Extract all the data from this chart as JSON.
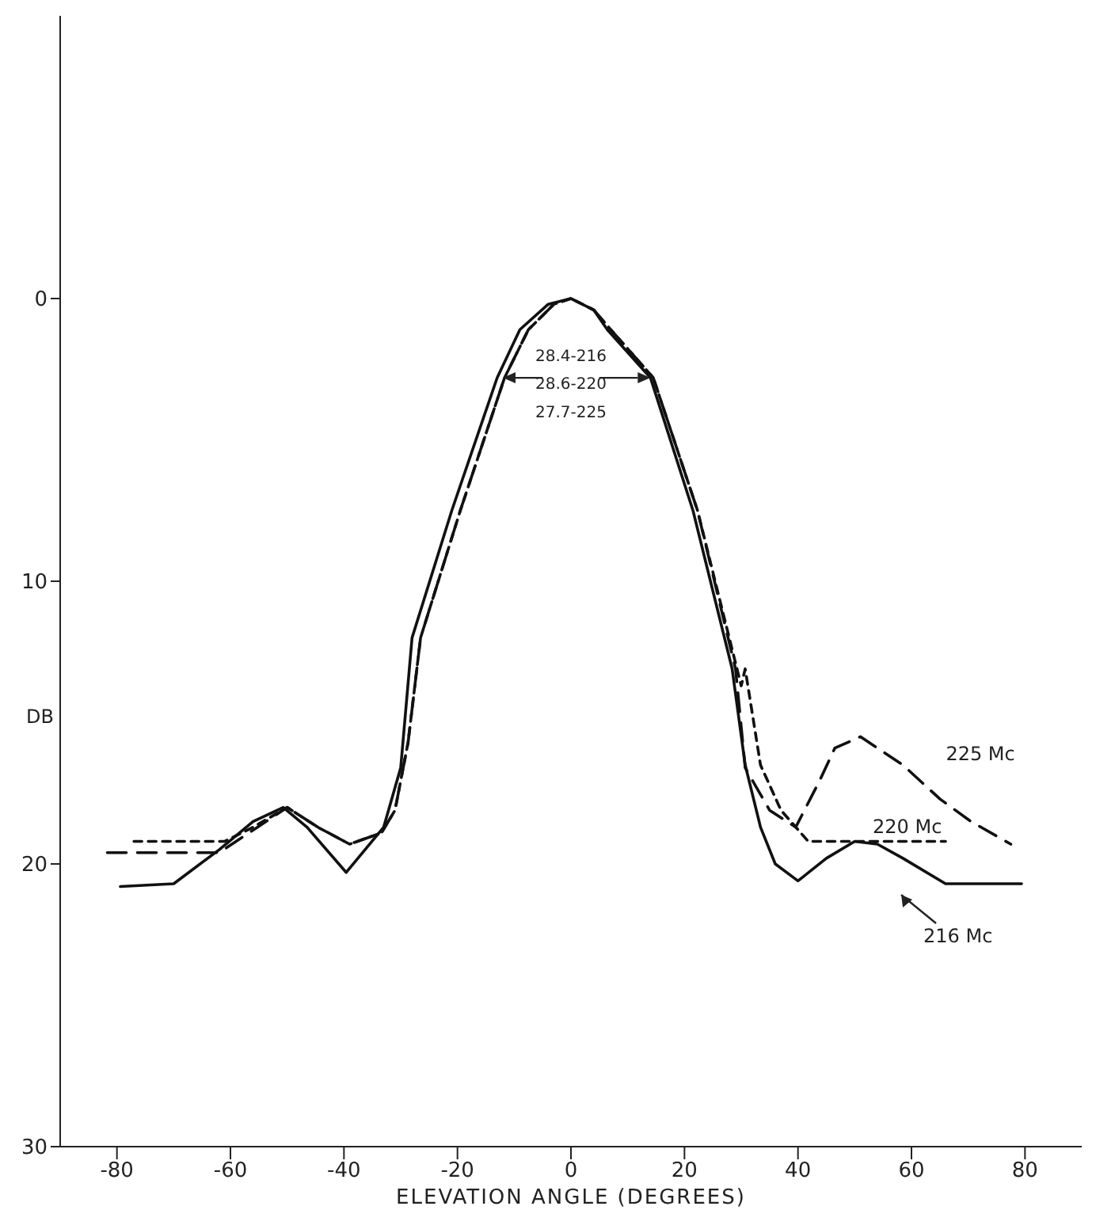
{
  "chart_data": {
    "type": "line",
    "xlabel": "ELEVATION ANGLE (DEGREES)",
    "ylabel": "DB",
    "xlim": [
      -90,
      90
    ],
    "xticks": [
      -80,
      -60,
      -40,
      -20,
      0,
      20,
      40,
      60,
      80
    ],
    "ylim": [
      30,
      -10
    ],
    "yticks": [
      0,
      10,
      20,
      30
    ],
    "marker": "none",
    "annotations": [
      "28.4-216",
      "28.6-220",
      "27.7-225"
    ],
    "series": [
      {
        "name": "216 Mc",
        "color": "#111111",
        "line_style": "solid",
        "x": [
          -79.4,
          -70,
          -62,
          -56,
          -50.7,
          -46.5,
          -39.6,
          -33,
          -30,
          -28,
          -21,
          -13,
          -9,
          -4,
          0,
          4,
          6.4,
          14,
          21.5,
          28.4,
          30.7,
          33.4,
          36,
          40,
          45,
          50,
          54,
          58.5,
          66,
          79.4
        ],
        "values": [
          20.8,
          20.7,
          19.5,
          18.5,
          18.0,
          18.7,
          20.3,
          18.7,
          16.6,
          12.0,
          7.5,
          2.8,
          1.1,
          0.2,
          0,
          0.4,
          1.1,
          2.8,
          7.5,
          13.1,
          16.5,
          18.7,
          20.0,
          20.6,
          19.8,
          19.2,
          19.3,
          19.8,
          20.7,
          20.7
        ]
      },
      {
        "name": "220 Mc",
        "color": "#111111",
        "line_style": "dashed",
        "x": [
          -77,
          -61,
          -56,
          -50,
          -44.6,
          -39,
          -33.4,
          -31,
          -28.7,
          -26.5,
          -19.5,
          -11.7,
          -7.5,
          -3,
          0,
          4,
          7,
          14.5,
          22.3,
          30,
          30.7,
          33.4,
          37,
          41.8,
          50,
          66
        ],
        "values": [
          19.2,
          19.2,
          18.7,
          18.0,
          18.7,
          19.3,
          18.9,
          18.1,
          15.7,
          12.0,
          7.5,
          2.8,
          1.1,
          0.2,
          0,
          0.4,
          1.1,
          2.8,
          7.5,
          13.7,
          13.1,
          16.5,
          18.1,
          19.2,
          19.2,
          19.2
        ]
      },
      {
        "name": "225 Mc",
        "color": "#111111",
        "line_style": "dashed",
        "x": [
          -81.7,
          -62,
          -56,
          -50,
          -44.6,
          -39,
          -33.4,
          -31,
          -28.7,
          -26.5,
          -19.5,
          -11.7,
          -7.5,
          -3,
          0,
          4,
          7,
          14.5,
          22.3,
          29,
          30.7,
          35,
          39.6,
          43.7,
          46.5,
          51,
          58.5,
          65,
          70.5,
          77.5
        ],
        "values": [
          19.6,
          19.6,
          18.8,
          18.0,
          18.7,
          19.3,
          18.9,
          18.1,
          15.7,
          12.0,
          7.5,
          2.8,
          1.1,
          0.2,
          0,
          0.4,
          1.1,
          2.8,
          7.5,
          13.1,
          16.6,
          18.1,
          18.7,
          17.1,
          15.9,
          15.5,
          16.5,
          17.7,
          18.5,
          19.3
        ]
      }
    ]
  }
}
